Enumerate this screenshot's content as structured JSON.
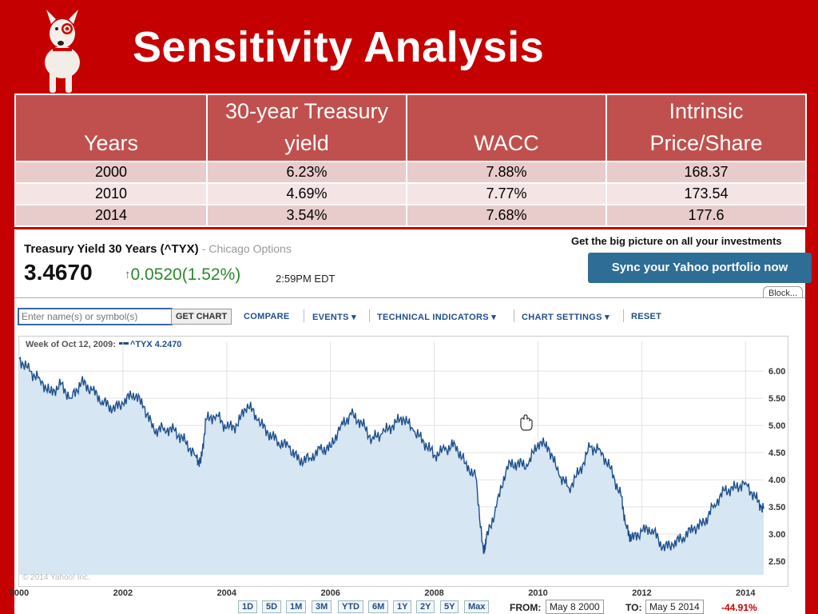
{
  "slide": {
    "title": "Sensitivity Analysis"
  },
  "table": {
    "headers": [
      "Years",
      "30-year Treasury yield",
      "WACC",
      "Intrinsic Price/Share"
    ],
    "rows": [
      [
        "2000",
        "6.23%",
        "7.88%",
        "168.37"
      ],
      [
        "2010",
        "4.69%",
        "7.77%",
        "173.54"
      ],
      [
        "2014",
        "3.54%",
        "7.68%",
        "177.6"
      ]
    ]
  },
  "quote": {
    "name": "Treasury Yield 30 Years (^TYX)",
    "source": "- Chicago Options",
    "price": "3.4670",
    "change": "0.0520",
    "change_pct": "(1.52%)",
    "time": "2:59PM EDT"
  },
  "promo": {
    "text": "Get the big picture on all your investments",
    "button": "Sync your Yahoo portfolio now",
    "block_tab": "Block..."
  },
  "toolbar": {
    "input_placeholder": "Enter name(s) or symbol(s)",
    "get_chart": "GET CHART",
    "compare": "COMPARE",
    "events": "EVENTS",
    "technical": "TECHNICAL INDICATORS",
    "settings": "CHART SETTINGS",
    "reset": "RESET"
  },
  "chart_header": {
    "week": "Week of Oct 12, 2009:",
    "series": "^TYX 4.2470"
  },
  "copyright": "© 2014 Yahoo! Inc.",
  "range_buttons": [
    "1D",
    "5D",
    "1M",
    "3M",
    "YTD",
    "6M",
    "1Y",
    "2Y",
    "5Y",
    "Max"
  ],
  "dates": {
    "from_label": "FROM:",
    "from_value": "May 8 2000",
    "to_label": "TO:",
    "to_value": "May 5 2014",
    "pct": "-44.91%"
  },
  "colors": {
    "background": "#c40000",
    "table_header": "#c0504d",
    "line": "#1d4f8c",
    "area": "#d6e6f2"
  },
  "icons": {
    "up": "arrow-up-icon",
    "dropdown": "caret-down-icon",
    "cursor": "hand-cursor-icon"
  },
  "chart_data": {
    "type": "area",
    "title": "",
    "xlabel": "",
    "ylabel": "",
    "x_ticks": [
      "2000",
      "2002",
      "2004",
      "2006",
      "2008",
      "2010",
      "2012",
      "2014"
    ],
    "y_ticks": [
      "2.50",
      "3.00",
      "3.50",
      "4.00",
      "4.50",
      "5.00",
      "5.50",
      "6.00"
    ],
    "xlim": [
      2000.0,
      2014.35
    ],
    "ylim": [
      2.25,
      6.4
    ],
    "series": [
      {
        "x": [
          2000.0,
          2000.2,
          2000.4,
          2000.6,
          2000.8,
          2001.0,
          2001.2,
          2001.4,
          2001.6,
          2001.8,
          2002.0,
          2002.2,
          2002.4,
          2002.6,
          2002.8,
          2003.0,
          2003.2,
          2003.4,
          2003.5,
          2003.6,
          2003.8,
          2004.0,
          2004.2,
          2004.4,
          2004.6,
          2004.8,
          2005.0,
          2005.2,
          2005.4,
          2005.6,
          2005.8,
          2006.0,
          2006.2,
          2006.4,
          2006.6,
          2006.8,
          2007.0,
          2007.2,
          2007.4,
          2007.6,
          2007.8,
          2008.0,
          2008.2,
          2008.4,
          2008.6,
          2008.8,
          2008.95,
          2009.0,
          2009.2,
          2009.4,
          2009.6,
          2009.8,
          2010.0,
          2010.2,
          2010.4,
          2010.6,
          2010.8,
          2011.0,
          2011.2,
          2011.4,
          2011.6,
          2011.7,
          2011.8,
          2012.0,
          2012.2,
          2012.4,
          2012.6,
          2012.8,
          2013.0,
          2013.2,
          2013.4,
          2013.6,
          2013.8,
          2014.0,
          2014.2,
          2014.35
        ],
        "y": [
          6.23,
          6.0,
          5.85,
          5.6,
          5.75,
          5.5,
          5.8,
          5.65,
          5.45,
          5.3,
          5.4,
          5.6,
          5.35,
          4.9,
          4.95,
          4.9,
          4.7,
          4.45,
          4.3,
          5.1,
          5.2,
          4.95,
          5.0,
          5.4,
          5.1,
          4.85,
          4.7,
          4.6,
          4.35,
          4.4,
          4.55,
          4.6,
          5.0,
          5.2,
          5.05,
          4.75,
          4.85,
          5.0,
          5.15,
          4.9,
          4.7,
          4.45,
          4.55,
          4.65,
          4.3,
          4.05,
          2.65,
          2.9,
          3.5,
          4.25,
          4.3,
          4.25,
          4.69,
          4.6,
          4.1,
          3.85,
          4.15,
          4.6,
          4.55,
          4.2,
          3.7,
          3.15,
          2.9,
          3.05,
          3.1,
          2.75,
          2.8,
          2.95,
          3.1,
          3.2,
          3.55,
          3.8,
          3.85,
          3.95,
          3.65,
          3.467
        ]
      }
    ]
  }
}
